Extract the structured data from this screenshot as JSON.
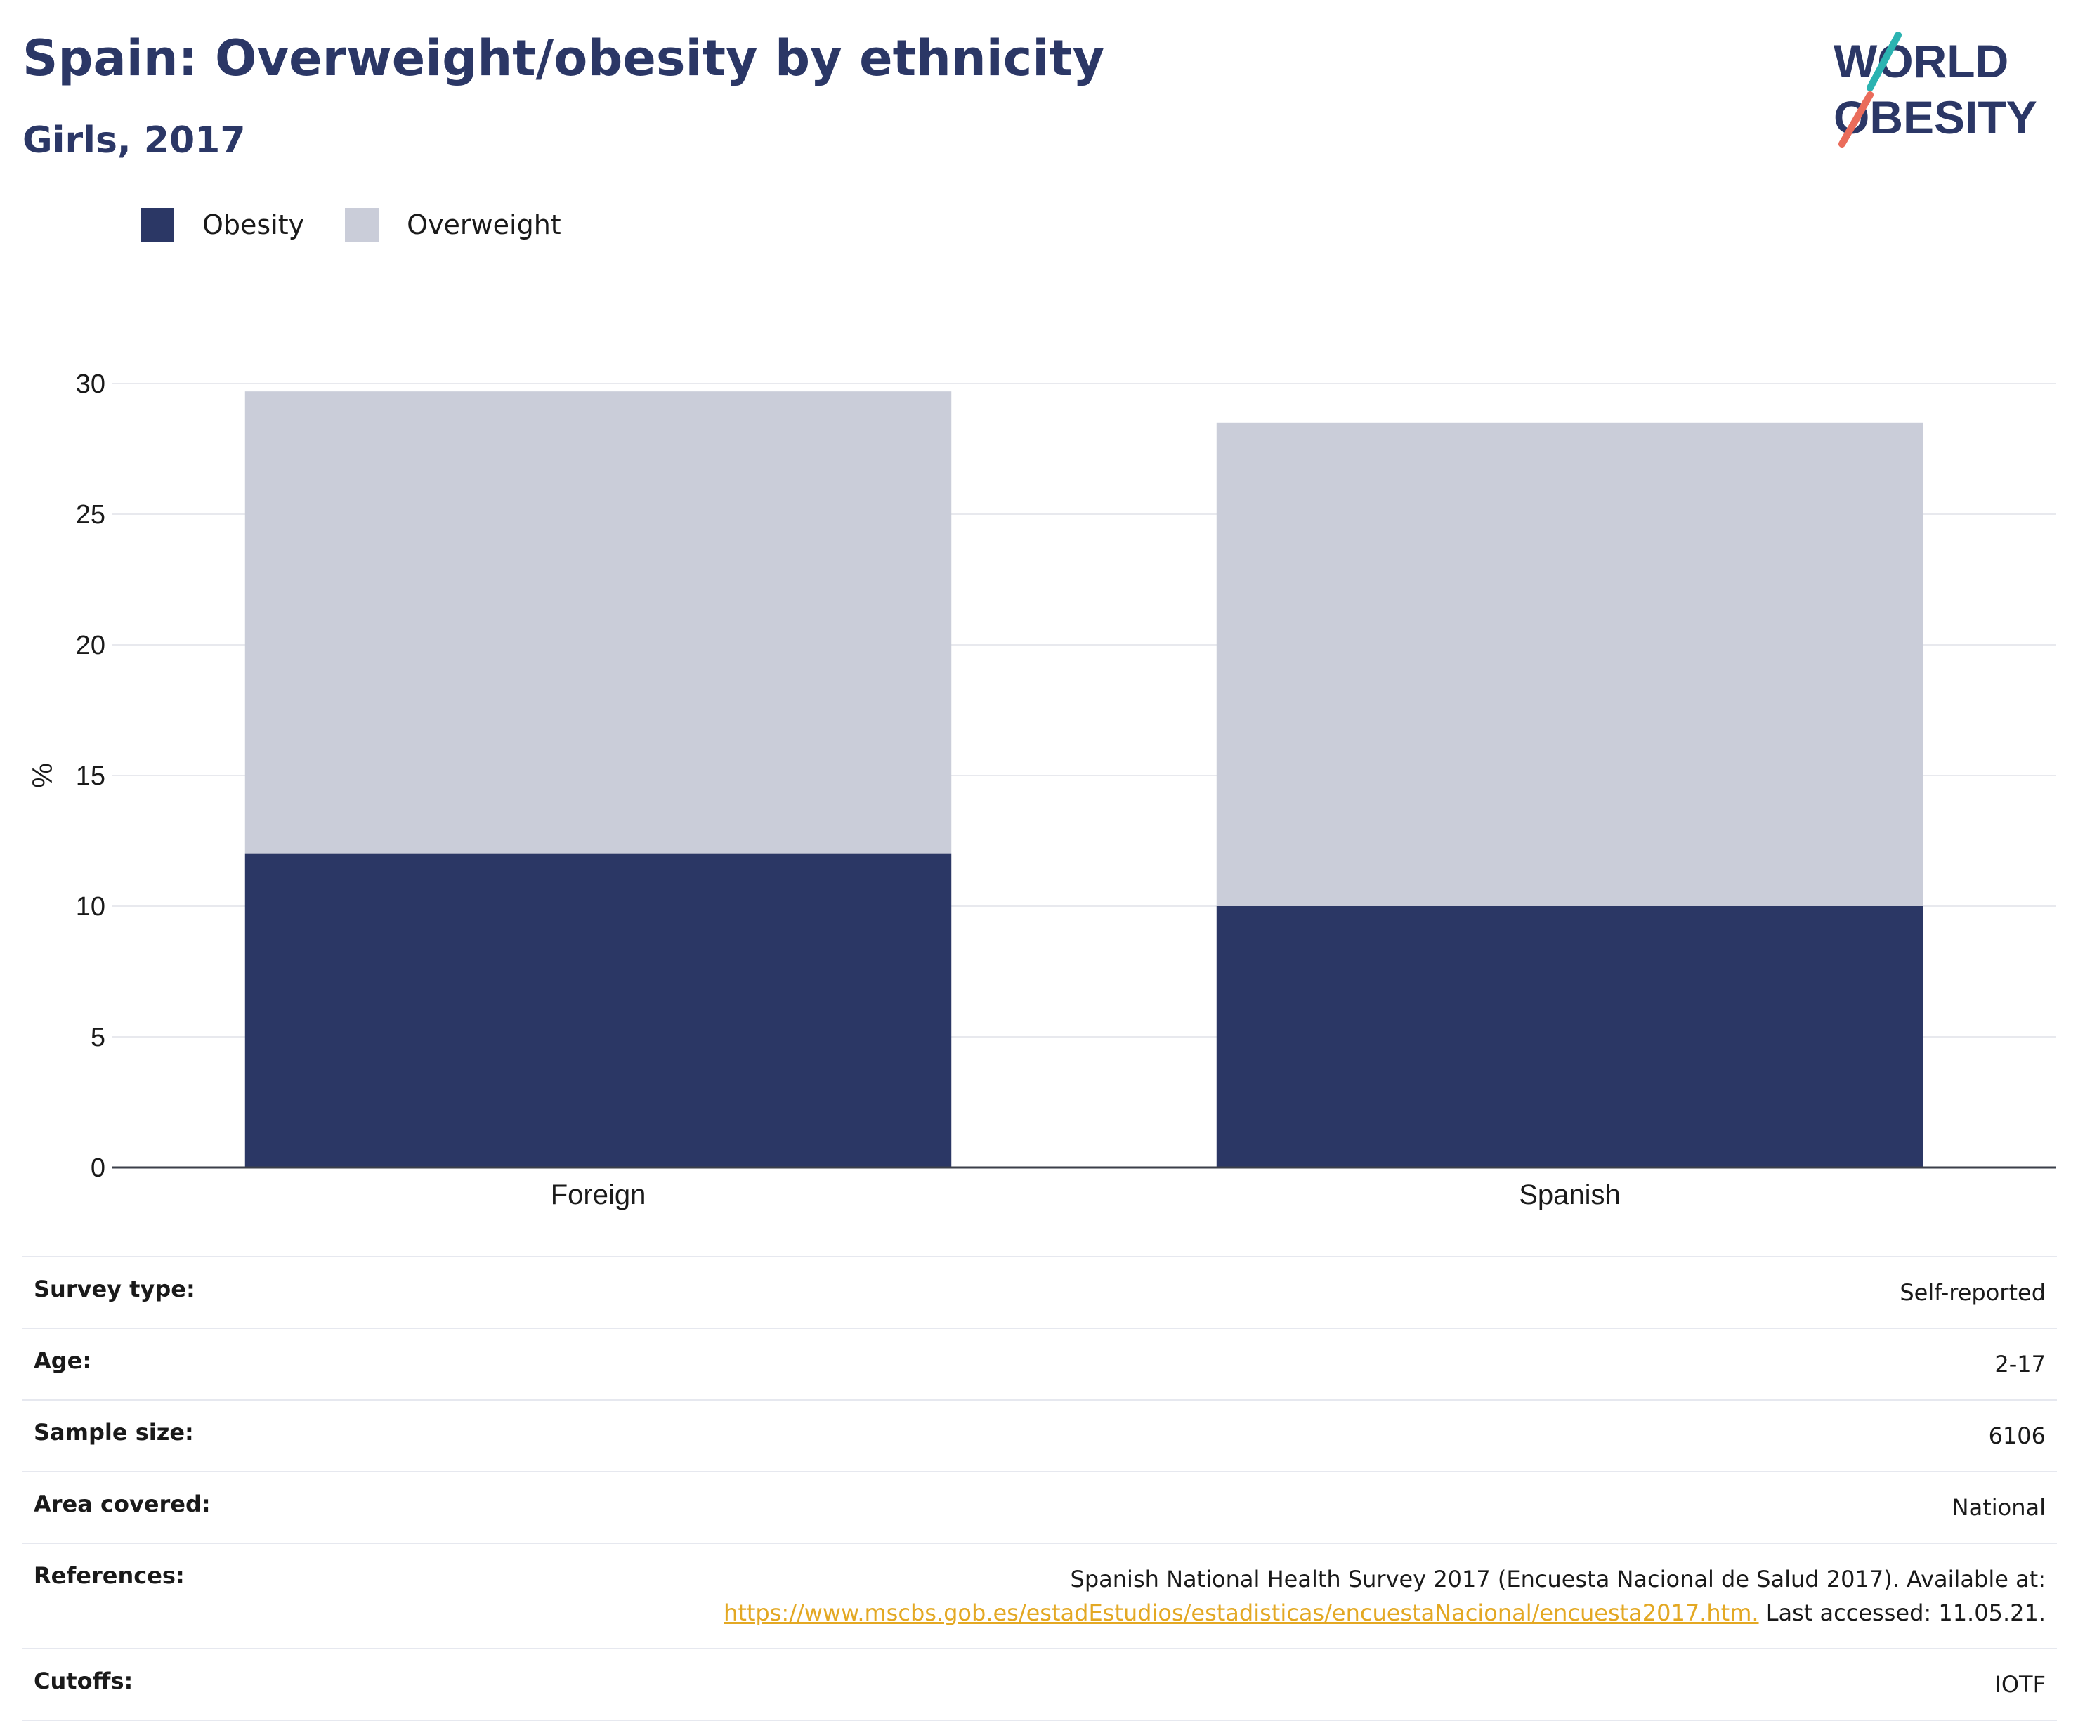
{
  "header": {
    "title": "Spain: Overweight/obesity by ethnicity",
    "subtitle": "Girls, 2017"
  },
  "logo": {
    "line1": "WORLD",
    "line2": "OBESITY"
  },
  "legend": {
    "items": [
      {
        "label": "Obesity",
        "color": "#2b3765"
      },
      {
        "label": "Overweight",
        "color": "#cacdd9"
      }
    ]
  },
  "chart_data": {
    "type": "bar",
    "stacked": true,
    "categories": [
      "Foreign",
      "Spanish"
    ],
    "series": [
      {
        "name": "Obesity",
        "values": [
          12.0,
          10.0
        ],
        "color": "#2b3765"
      },
      {
        "name": "Overweight",
        "values": [
          17.7,
          18.5
        ],
        "color": "#cacdd9"
      }
    ],
    "title": "Spain: Overweight/obesity by ethnicity",
    "subtitle": "Girls, 2017",
    "xlabel": "",
    "ylabel": "%",
    "ylim": [
      0,
      30
    ],
    "yticks": [
      0,
      5,
      10,
      15,
      20,
      25,
      30
    ],
    "grid": true,
    "legend_position": "top-left"
  },
  "info": {
    "rows": [
      {
        "label": "Survey type:",
        "value": "Self-reported"
      },
      {
        "label": "Age:",
        "value": "2-17"
      },
      {
        "label": "Sample size:",
        "value": "6106"
      },
      {
        "label": "Area covered:",
        "value": "National"
      },
      {
        "label": "References:",
        "value": "Spanish National Health Survey 2017 (Encuesta Nacional de Salud 2017). Available at:",
        "link": "https://www.mscbs.gob.es/estadEstudios/estadisticas/encuestaNacional/encuesta2017.htm.",
        "suffix": " Last accessed: 11.05.21."
      },
      {
        "label": "Cutoffs:",
        "value": "IOTF"
      }
    ]
  }
}
